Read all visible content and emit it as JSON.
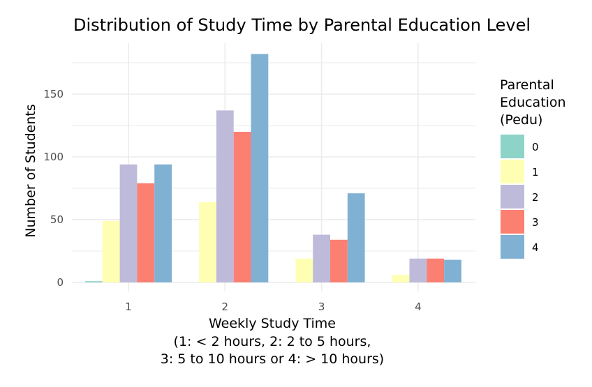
{
  "chart_data": {
    "type": "bar",
    "title": "Distribution of Study Time by Parental Education Level",
    "xlabel": [
      "Weekly Study Time",
      "(1: < 2 hours, 2: 2 to 5 hours,",
      "3: 5 to 10 hours or 4: > 10 hours)"
    ],
    "ylabel": "Number of Students",
    "categories": [
      "1",
      "2",
      "3",
      "4"
    ],
    "ylim": [
      0,
      190
    ],
    "yticks": [
      0,
      50,
      100,
      150
    ],
    "grid": true,
    "legend": {
      "title": [
        "Parental",
        "Education",
        "(Pedu)"
      ],
      "position": "right"
    },
    "series": [
      {
        "name": "0",
        "color": "#8DD3C7",
        "values": [
          1,
          0,
          0,
          0
        ]
      },
      {
        "name": "1",
        "color": "#FFFFB3",
        "values": [
          49,
          64,
          19,
          6
        ]
      },
      {
        "name": "2",
        "color": "#BEBADA",
        "values": [
          94,
          137,
          38,
          19
        ]
      },
      {
        "name": "3",
        "color": "#FB8072",
        "values": [
          79,
          120,
          34,
          19
        ]
      },
      {
        "name": "4",
        "color": "#80B1D3",
        "values": [
          94,
          182,
          71,
          18
        ]
      }
    ]
  }
}
